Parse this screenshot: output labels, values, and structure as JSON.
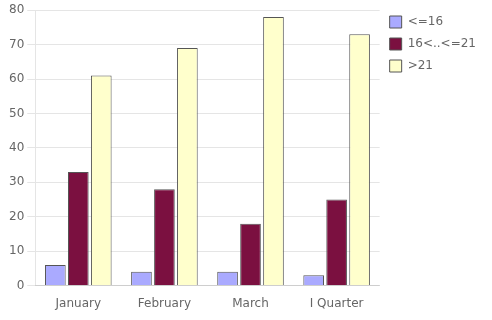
{
  "chart_data": {
    "type": "bar",
    "categories": [
      "January",
      "February",
      "March",
      "I Quarter"
    ],
    "series": [
      {
        "name": "<=16",
        "color": "#AAAAFF",
        "values": [
          6,
          4,
          4,
          3
        ]
      },
      {
        "name": "16<..<=21",
        "color": "#7B1040",
        "values": [
          33,
          28,
          18,
          25
        ]
      },
      {
        "name": ">21",
        "color": "#FFFFCC",
        "values": [
          61,
          69,
          78,
          73
        ]
      }
    ],
    "ylim": [
      0,
      80
    ],
    "yticks": [
      0,
      10,
      20,
      30,
      40,
      50,
      60,
      70,
      80
    ],
    "grid": true,
    "legend": "right"
  }
}
